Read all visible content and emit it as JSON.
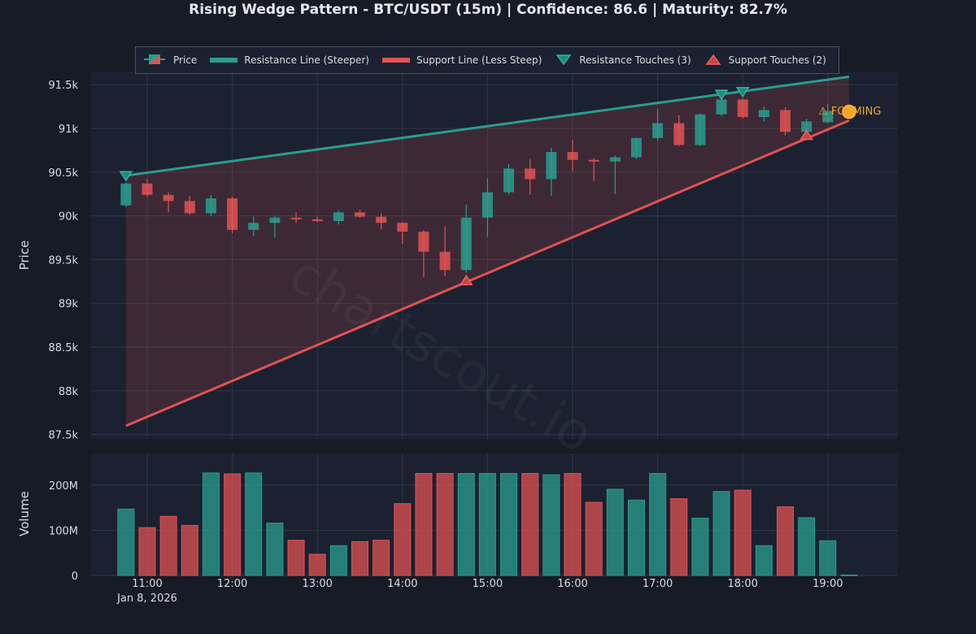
{
  "title": "Rising Wedge Pattern - BTC/USDT (15m) | Confidence: 86.6 | Maturity: 82.7%",
  "watermark": "chartscout.io",
  "colors": {
    "background": "#161b26",
    "panel": "#1b2130",
    "bull": "#2a9d8f",
    "bear": "#e05252",
    "forming": "#f5a623",
    "grid": "#2f3646"
  },
  "legend": {
    "price": "Price",
    "resistance": "Resistance Line (Steeper)",
    "support": "Support Line (Less Steep)",
    "resistance_touches": "Resistance Touches (3)",
    "support_touches": "Support Touches (2)"
  },
  "forming_label": "FORMING",
  "forming_icon": "warning-icon",
  "chart_data": {
    "type": "candlestick",
    "x_tick_labels": [
      "11:00",
      "12:00",
      "13:00",
      "14:00",
      "15:00",
      "16:00",
      "17:00",
      "18:00",
      "19:00"
    ],
    "x_date_label": "Jan 8, 2026",
    "price_panel": {
      "ylabel": "Price",
      "ylim": [
        87450,
        91650
      ],
      "yticks": [
        87500,
        88000,
        88500,
        89000,
        89500,
        90000,
        90500,
        91000,
        91500
      ],
      "ytick_labels": [
        "87.5k",
        "88k",
        "88.5k",
        "89k",
        "89.5k",
        "90k",
        "90.5k",
        "91k",
        "91.5k"
      ]
    },
    "volume_panel": {
      "ylabel": "Volume",
      "ylim": [
        0,
        270
      ],
      "unit": "M",
      "yticks": [
        0,
        100,
        200
      ],
      "ytick_labels": [
        "0",
        "100M",
        "200M"
      ]
    },
    "candles": [
      {
        "t": "10:45",
        "open": 90120,
        "high": 90380,
        "low": 90100,
        "close": 90370,
        "volume": 147
      },
      {
        "t": "11:00",
        "open": 90370,
        "high": 90420,
        "low": 90220,
        "close": 90240,
        "volume": 106
      },
      {
        "t": "11:15",
        "open": 90240,
        "high": 90270,
        "low": 90040,
        "close": 90170,
        "volume": 131
      },
      {
        "t": "11:30",
        "open": 90170,
        "high": 90230,
        "low": 90010,
        "close": 90030,
        "volume": 111
      },
      {
        "t": "11:45",
        "open": 90030,
        "high": 90240,
        "low": 90000,
        "close": 90200,
        "volume": 227
      },
      {
        "t": "12:00",
        "open": 90200,
        "high": 90220,
        "low": 89800,
        "close": 89840,
        "volume": 225
      },
      {
        "t": "12:15",
        "open": 89840,
        "high": 89990,
        "low": 89770,
        "close": 89920,
        "volume": 227
      },
      {
        "t": "12:30",
        "open": 89920,
        "high": 90000,
        "low": 89750,
        "close": 89980,
        "volume": 116
      },
      {
        "t": "12:45",
        "open": 89980,
        "high": 90040,
        "low": 89920,
        "close": 89960,
        "volume": 78
      },
      {
        "t": "13:00",
        "open": 89960,
        "high": 89990,
        "low": 89930,
        "close": 89940,
        "volume": 47
      },
      {
        "t": "13:15",
        "open": 89940,
        "high": 90060,
        "low": 89900,
        "close": 90040,
        "volume": 66
      },
      {
        "t": "13:30",
        "open": 90040,
        "high": 90070,
        "low": 89980,
        "close": 89990,
        "volume": 75
      },
      {
        "t": "13:45",
        "open": 89990,
        "high": 90030,
        "low": 89850,
        "close": 89920,
        "volume": 78
      },
      {
        "t": "14:00",
        "open": 89920,
        "high": 89930,
        "low": 89680,
        "close": 89820,
        "volume": 159
      },
      {
        "t": "14:15",
        "open": 89820,
        "high": 89840,
        "low": 89300,
        "close": 89590,
        "volume": 226
      },
      {
        "t": "14:30",
        "open": 89590,
        "high": 89880,
        "low": 89310,
        "close": 89380,
        "volume": 226
      },
      {
        "t": "14:45",
        "open": 89380,
        "high": 90130,
        "low": 89350,
        "close": 89980,
        "volume": 226
      },
      {
        "t": "15:00",
        "open": 89980,
        "high": 90430,
        "low": 89760,
        "close": 90270,
        "volume": 226
      },
      {
        "t": "15:15",
        "open": 90270,
        "high": 90590,
        "low": 90240,
        "close": 90540,
        "volume": 226
      },
      {
        "t": "15:30",
        "open": 90540,
        "high": 90650,
        "low": 90240,
        "close": 90420,
        "volume": 226
      },
      {
        "t": "15:45",
        "open": 90420,
        "high": 90780,
        "low": 90230,
        "close": 90730,
        "volume": 223
      },
      {
        "t": "16:00",
        "open": 90730,
        "high": 90870,
        "low": 90510,
        "close": 90640,
        "volume": 226
      },
      {
        "t": "16:15",
        "open": 90640,
        "high": 90660,
        "low": 90400,
        "close": 90620,
        "volume": 162
      },
      {
        "t": "16:30",
        "open": 90620,
        "high": 90690,
        "low": 90250,
        "close": 90670,
        "volume": 191
      },
      {
        "t": "16:45",
        "open": 90670,
        "high": 90890,
        "low": 90650,
        "close": 90890,
        "volume": 167
      },
      {
        "t": "17:00",
        "open": 90890,
        "high": 91220,
        "low": 90860,
        "close": 91060,
        "volume": 226
      },
      {
        "t": "17:15",
        "open": 91060,
        "high": 91150,
        "low": 90800,
        "close": 90810,
        "volume": 170
      },
      {
        "t": "17:30",
        "open": 90810,
        "high": 91170,
        "low": 90800,
        "close": 91160,
        "volume": 127
      },
      {
        "t": "17:45",
        "open": 91160,
        "high": 91400,
        "low": 91140,
        "close": 91330,
        "volume": 186
      },
      {
        "t": "18:00",
        "open": 91330,
        "high": 91340,
        "low": 91110,
        "close": 91130,
        "volume": 189
      },
      {
        "t": "18:15",
        "open": 91130,
        "high": 91250,
        "low": 91080,
        "close": 91210,
        "volume": 66
      },
      {
        "t": "18:30",
        "open": 91210,
        "high": 91240,
        "low": 90920,
        "close": 90960,
        "volume": 152
      },
      {
        "t": "18:45",
        "open": 90960,
        "high": 91110,
        "low": 90940,
        "close": 91080,
        "volume": 128
      },
      {
        "t": "19:00",
        "open": 91070,
        "high": 91280,
        "low": 91060,
        "close": 91200,
        "volume": 77
      },
      {
        "t": "19:15",
        "open": 91200,
        "high": 91200,
        "low": 91200,
        "close": 91200,
        "volume": 1
      }
    ],
    "resistance_line": {
      "start": {
        "t": "10:45",
        "price": 90460
      },
      "end": {
        "t": "19:15",
        "price": 91590
      }
    },
    "support_line": {
      "start": {
        "t": "10:45",
        "price": 87600
      },
      "end": {
        "t": "19:15",
        "price": 91090
      }
    },
    "resistance_touches": [
      {
        "t": "10:45",
        "price": 90460
      },
      {
        "t": "17:45",
        "price": 91390
      },
      {
        "t": "18:00",
        "price": 91420
      }
    ],
    "support_touches": [
      {
        "t": "14:45",
        "price": 89260
      },
      {
        "t": "18:45",
        "price": 90920
      }
    ],
    "forming_point": {
      "t": "19:15",
      "price": 91190
    }
  }
}
